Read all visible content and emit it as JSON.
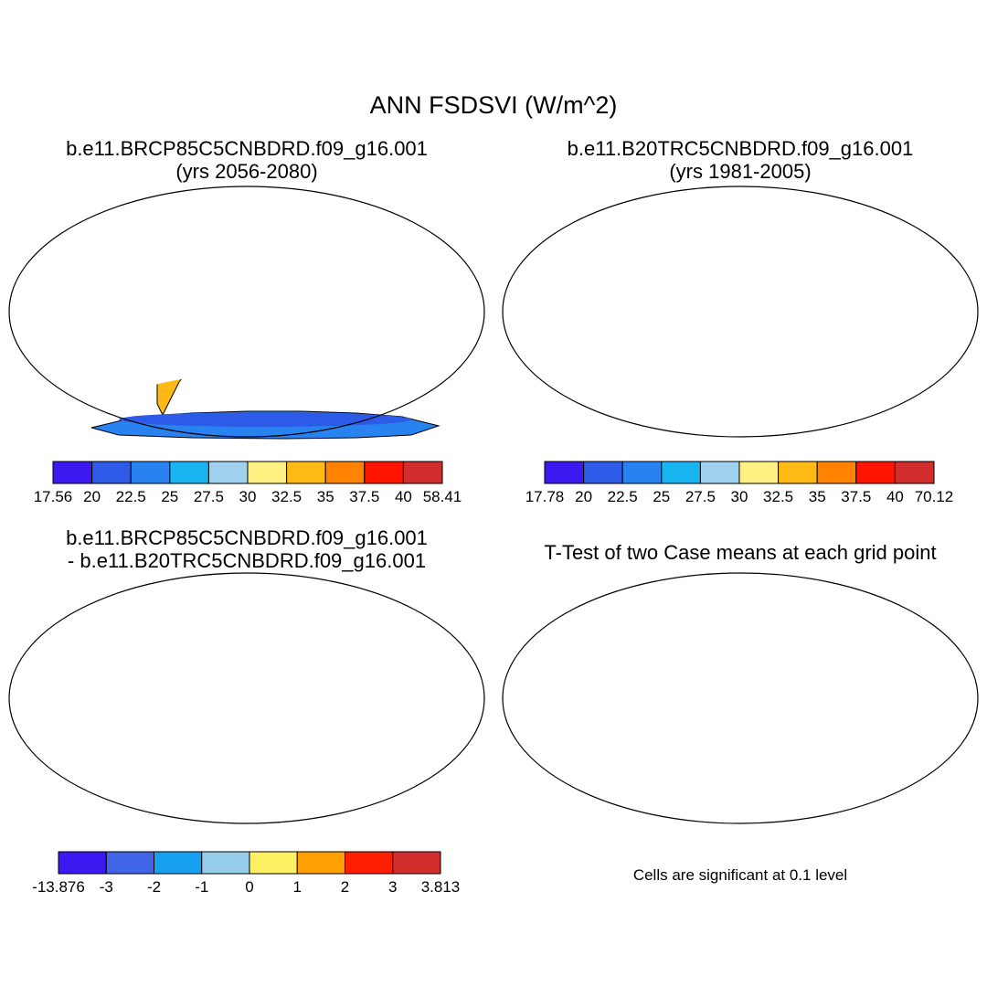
{
  "figure": {
    "title": "ANN FSDSVI (W/m^2)"
  },
  "panels": [
    {
      "id": "test-case",
      "title_line1": "b.e11.BRCP85C5CNBDRD.f09_g16.001",
      "title_line2": "(yrs 2056-2080)",
      "colorbar": {
        "colors": [
          "#3c19f0",
          "#2d5ae6",
          "#2882f0",
          "#18b4f0",
          "#a0d2f0",
          "#fff082",
          "#ffb914",
          "#ff8200",
          "#ff1400",
          "#d22d2d"
        ],
        "labels": [
          "17.56",
          "20",
          "22.5",
          "25",
          "27.5",
          "30",
          "32.5",
          "35",
          "37.5",
          "40",
          "58.41"
        ]
      }
    },
    {
      "id": "control-case",
      "title_line1": "b.e11.B20TRC5CNBDRD.f09_g16.001",
      "title_line2": "(yrs 1981-2005)",
      "colorbar": {
        "colors": [
          "#3c19f0",
          "#2d5ae6",
          "#2882f0",
          "#18b4f0",
          "#a0d2f0",
          "#fff082",
          "#ffb914",
          "#ff8200",
          "#ff1400",
          "#d22d2d"
        ],
        "labels": [
          "17.78",
          "20",
          "22.5",
          "25",
          "27.5",
          "30",
          "32.5",
          "35",
          "37.5",
          "40",
          "70.12"
        ]
      }
    },
    {
      "id": "difference",
      "title_line1": "b.e11.BRCP85C5CNBDRD.f09_g16.001",
      "title_line2": "- b.e11.B20TRC5CNBDRD.f09_g16.001",
      "colorbar": {
        "colors": [
          "#3c19f0",
          "#4164e6",
          "#18a0f0",
          "#96cdeb",
          "#fff064",
          "#ffa000",
          "#ff1e00",
          "#d22d2d"
        ],
        "labels": [
          "-13.876",
          "-3",
          "-2",
          "-1",
          "0",
          "1",
          "2",
          "3",
          "3.813"
        ]
      }
    },
    {
      "id": "ttest",
      "title_line1": "T-Test of two Case means at each grid point",
      "note": "Cells are significant at 0.1 level"
    }
  ],
  "palette": {
    "ocean": "#ffffff",
    "coast": "#000000",
    "significant": "#ff0000"
  }
}
